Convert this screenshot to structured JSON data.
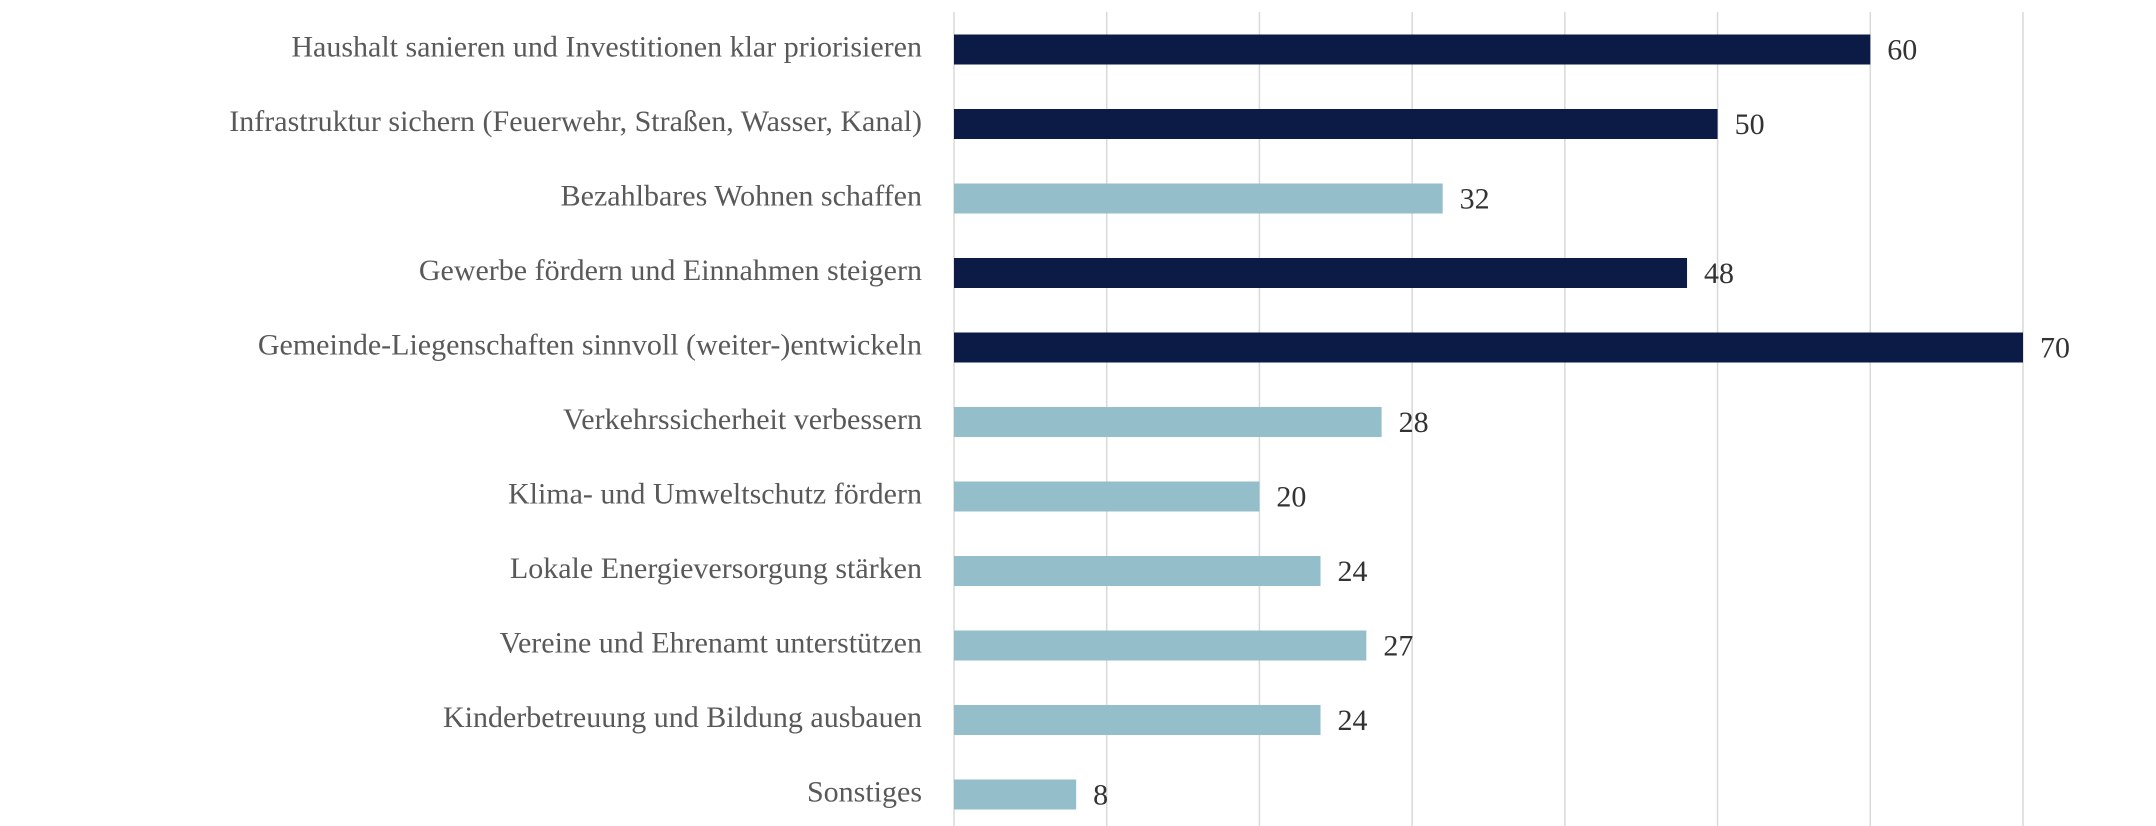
{
  "chart_data": {
    "type": "bar",
    "orientation": "horizontal",
    "categories": [
      "Haushalt sanieren und Investitionen klar priorisieren",
      "Infrastruktur sichern (Feuerwehr, Straßen, Wasser, Kanal)",
      "Bezahlbares Wohnen schaffen",
      "Gewerbe fördern und Einnahmen steigern",
      "Gemeinde-Liegenschaften sinnvoll (weiter-)entwickeln",
      "Verkehrssicherheit verbessern",
      "Klima- und Umweltschutz fördern",
      "Lokale Energieversorgung stärken",
      "Vereine und Ehrenamt unterstützen",
      "Kinderbetreuung und Bildung ausbauen",
      "Sonstiges"
    ],
    "values": [
      60,
      50,
      32,
      48,
      70,
      28,
      20,
      24,
      27,
      24,
      8
    ],
    "colors": [
      "#0b1b45",
      "#0b1b45",
      "#94bfca",
      "#0b1b45",
      "#0b1b45",
      "#94bfca",
      "#94bfca",
      "#94bfca",
      "#94bfca",
      "#94bfca",
      "#94bfca"
    ],
    "xlim": [
      0,
      70
    ],
    "xticks": [
      0,
      10,
      20,
      30,
      40,
      50,
      60,
      70
    ],
    "grid": true
  }
}
